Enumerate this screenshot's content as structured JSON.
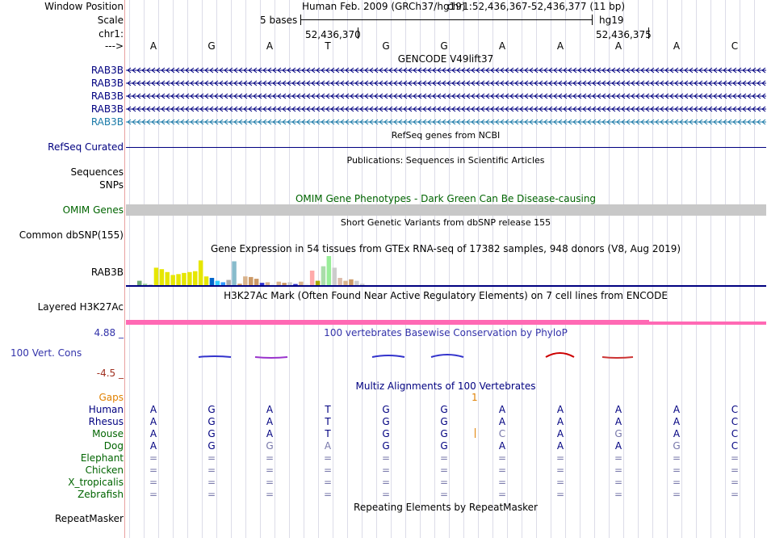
{
  "header": {
    "window_position_label": "Window Position",
    "assembly": "Human Feb. 2009 (GRCh37/hg19)",
    "position": "chr1:52,436,367-52,436,377 (11 bp)",
    "scale_label": "Scale",
    "scale_text": "5 bases",
    "scale_db": "hg19",
    "chrom_label": "chr1:",
    "coord1": "52,436,370",
    "coord2": "52,436,375",
    "strand_label": "--->",
    "bases": [
      "A",
      "G",
      "A",
      "T",
      "G",
      "G",
      "A",
      "A",
      "A",
      "A",
      "C"
    ]
  },
  "tracks": {
    "gencode_title": "GENCODE V49lift37",
    "gencode_genes": [
      "RAB3B",
      "RAB3B",
      "RAB3B",
      "RAB3B",
      "RAB3B"
    ],
    "refseq_title": "RefSeq genes from NCBI",
    "refseq_label": "RefSeq Curated",
    "pubs_title": "Publications: Sequences in Scientific Articles",
    "sequences_label": "Sequences",
    "snps_label": "SNPs",
    "omim_title": "OMIM Gene Phenotypes - Dark Green Can Be Disease-causing",
    "omim_label": "OMIM Genes",
    "dbsnp_title": "Short Genetic Variants from dbSNP release 155",
    "dbsnp_label": "Common dbSNP(155)",
    "gtex_title": "Gene Expression in 54 tissues from GTEx RNA-seq of 17382 samples, 948 donors (V8, Aug 2019)",
    "gtex_label": "RAB3B",
    "h3k27_title": "H3K27Ac Mark (Often Found Near Active Regulatory Elements) on 7 cell lines from ENCODE",
    "h3k27_label": "Layered H3K27Ac",
    "cons_top": "4.88 _",
    "cons_title": "100 vertebrates Basewise Conservation by PhyloP",
    "cons_label": "100 Vert. Cons",
    "cons_bottom": "-4.5 _",
    "multiz_title": "Multiz Alignments of 100 Vertebrates",
    "gaps_label": "Gaps",
    "gaps_value": "1",
    "species": [
      {
        "name": "Human",
        "bases": [
          "A",
          "G",
          "A",
          "T",
          "G",
          "G",
          "A",
          "A",
          "A",
          "A",
          "C"
        ]
      },
      {
        "name": "Rhesus",
        "bases": [
          "A",
          "G",
          "A",
          "T",
          "G",
          "G",
          "A",
          "A",
          "A",
          "A",
          "C"
        ]
      },
      {
        "name": "Mouse",
        "bases": [
          "A",
          "G",
          "A",
          "T",
          "G",
          "G",
          "C",
          "A",
          "G",
          "A",
          "C"
        ]
      },
      {
        "name": "Dog",
        "bases": [
          "A",
          "G",
          "G",
          "A",
          "G",
          "G",
          "A",
          "A",
          "A",
          "G",
          "C"
        ]
      },
      {
        "name": "Elephant",
        "bases": [
          "=",
          "=",
          "=",
          "=",
          "=",
          "=",
          "=",
          "=",
          "=",
          "=",
          "="
        ]
      },
      {
        "name": "Chicken",
        "bases": [
          "=",
          "=",
          "=",
          "=",
          "=",
          "=",
          "=",
          "=",
          "=",
          "=",
          "="
        ]
      },
      {
        "name": "X_tropicalis",
        "bases": [
          "=",
          "=",
          "=",
          "=",
          "=",
          "=",
          "=",
          "=",
          "=",
          "=",
          "="
        ]
      },
      {
        "name": "Zebrafish",
        "bases": [
          "=",
          "=",
          "=",
          "=",
          "=",
          "=",
          "=",
          "=",
          "=",
          "=",
          "="
        ]
      }
    ],
    "repeat_title": "Repeating Elements by RepeatMasker",
    "repeat_label": "RepeatMasker"
  },
  "gtex_values": [
    0.15,
    0.05,
    0.02,
    0.6,
    0.55,
    0.45,
    0.35,
    0.38,
    0.42,
    0.45,
    0.48,
    0.85,
    0.3,
    0.25,
    0.15,
    0.1,
    0.18,
    0.82,
    0.05,
    0.3,
    0.28,
    0.22,
    0.08,
    0.1,
    0.05,
    0.12,
    0.08,
    0.1,
    0.04,
    0.12,
    0.05,
    0.5,
    0.15,
    0.65,
    1.0,
    0.6,
    0.25,
    0.15,
    0.2,
    0.15,
    0.05
  ],
  "gtex_colors": [
    "#6fa875",
    "#9fcfa0",
    "#c0c0c0",
    "#e6e600",
    "#e6e600",
    "#e6e600",
    "#e6e600",
    "#e6e600",
    "#e6e600",
    "#e6e600",
    "#e6e600",
    "#e6e600",
    "#e6e600",
    "#0066cc",
    "#33ccff",
    "#3399ff",
    "#aaaaaa",
    "#88bbcc",
    "#cc9966",
    "#d9b38c",
    "#cc9966",
    "#cc9966",
    "#3333cc",
    "#d9b38c",
    "#eeeeee",
    "#d9b38c",
    "#cc9966",
    "#cccccc",
    "#3333cc",
    "#d9b38c",
    "#eeeeee",
    "#ffaaaa",
    "#aaaa00",
    "#aaddaa",
    "#99ee99",
    "#cccccc",
    "#ddbbaa",
    "#d9b38c",
    "#cc9966",
    "#cccccc",
    "#cccccc"
  ],
  "colors": {
    "navy": "#000080",
    "gene_teal": "#1a7aa8",
    "green": "#006400",
    "brown": "#a03020",
    "gaps": "#e08000",
    "pink": "#ff69b4",
    "omim_gray": "#c8c8c8",
    "cons_blue": "#3333aa"
  }
}
